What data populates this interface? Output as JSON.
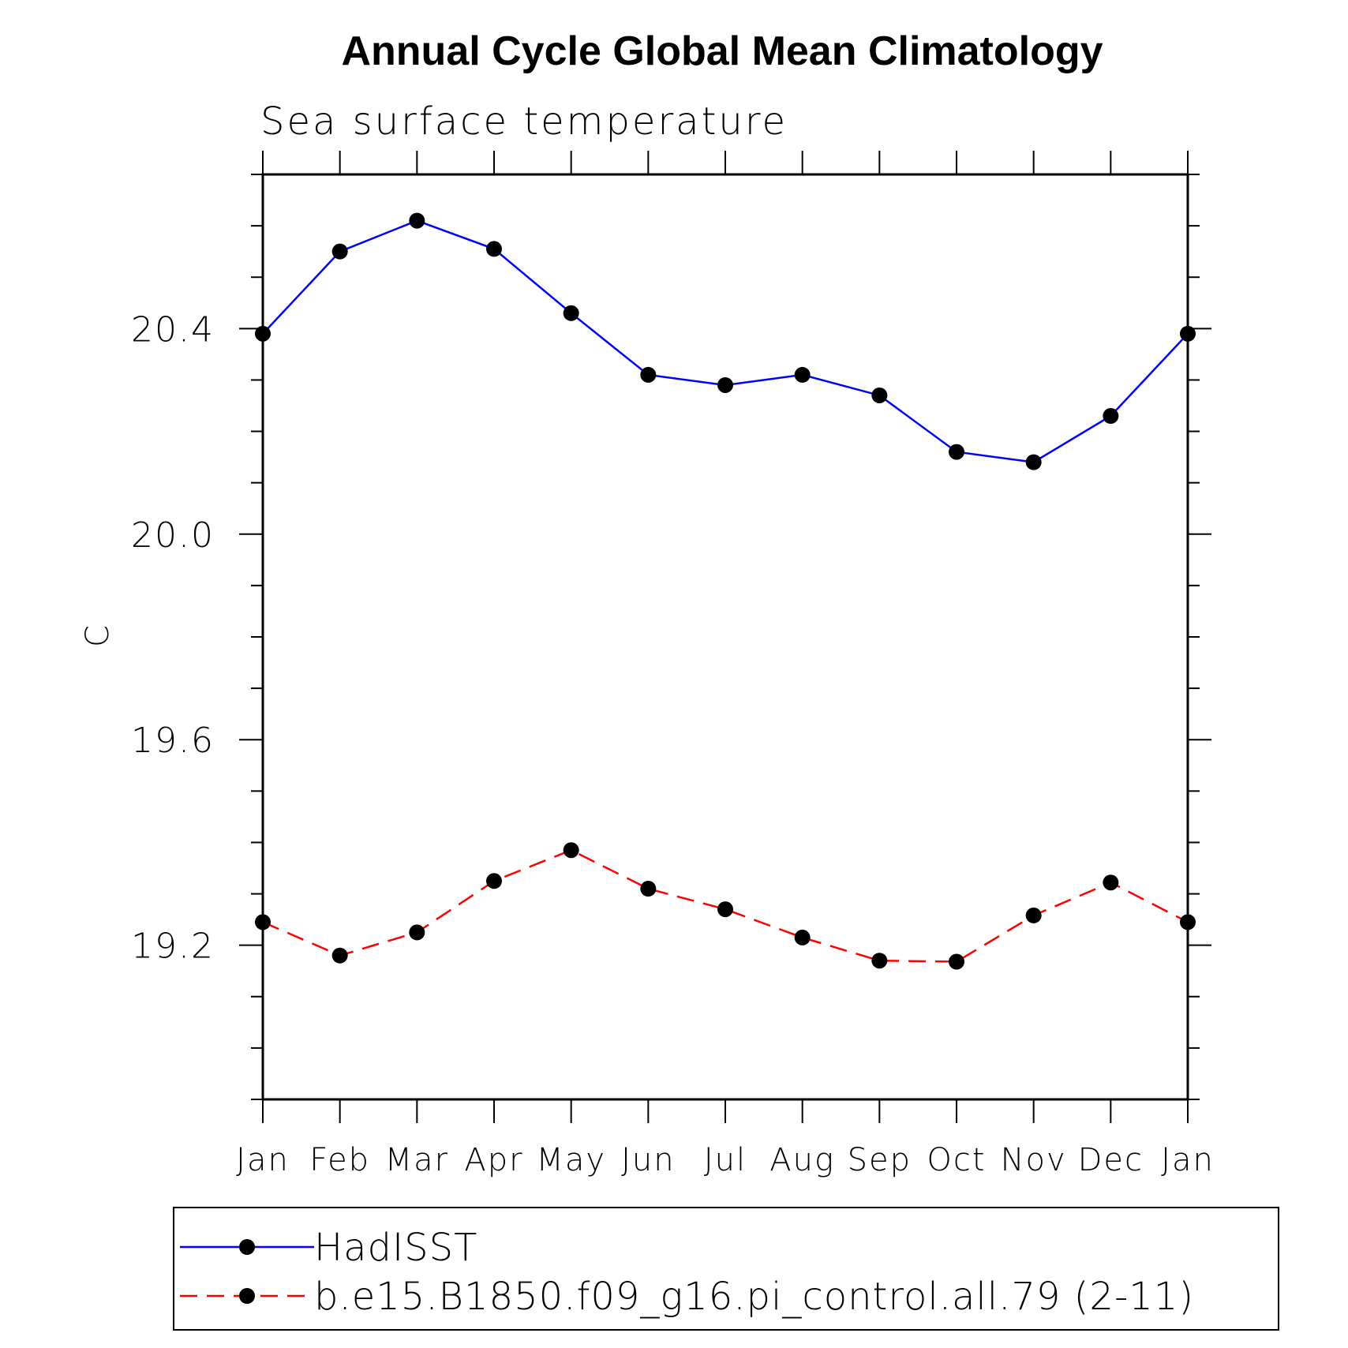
{
  "chart_data": {
    "type": "line",
    "title": "Annual Cycle Global Mean Climatology",
    "subtitle": "Sea surface temperature",
    "xlabel": "",
    "ylabel": "C",
    "categories": [
      "Jan",
      "Feb",
      "Mar",
      "Apr",
      "May",
      "Jun",
      "Jul",
      "Aug",
      "Sep",
      "Oct",
      "Nov",
      "Dec",
      "Jan"
    ],
    "ylim": [
      18.9,
      20.7
    ],
    "yticks": [
      19.2,
      19.6,
      20.0,
      20.4
    ],
    "ytick_labels": [
      "19.2",
      "19.6",
      "20.0",
      "20.4"
    ],
    "series": [
      {
        "name": "HadISST",
        "color": "#0000ff",
        "dash": "solid",
        "marker": "filled-circle",
        "values": [
          20.39,
          20.55,
          20.61,
          20.555,
          20.43,
          20.31,
          20.29,
          20.31,
          20.27,
          20.16,
          20.14,
          20.23,
          20.39
        ]
      },
      {
        "name": "b.e15.B1850.f09_g16.pi_control.all.79 (2-11)",
        "color": "#ff0000",
        "dash": "dashed",
        "marker": "filled-circle",
        "values": [
          19.245,
          19.18,
          19.225,
          19.325,
          19.385,
          19.31,
          19.27,
          19.215,
          19.17,
          19.168,
          19.258,
          19.322,
          19.245
        ]
      }
    ],
    "legend_position": "bottom",
    "grid": false
  }
}
